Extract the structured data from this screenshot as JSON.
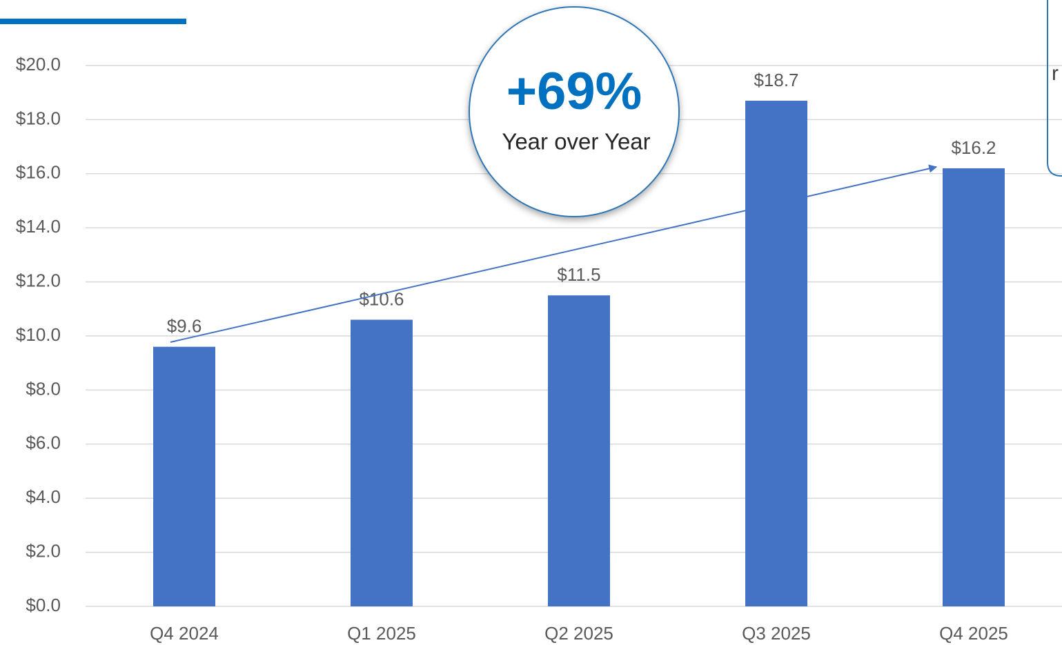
{
  "chart_data": {
    "type": "bar",
    "categories": [
      "Q4 2024",
      "Q1 2025",
      "Q2 2025",
      "Q3 2025",
      "Q4 2025"
    ],
    "values": [
      9.6,
      10.6,
      11.5,
      18.7,
      16.2
    ],
    "value_labels": [
      "$9.6",
      "$10.6",
      "$11.5",
      "$18.7",
      "$16.2"
    ],
    "color": "#4472c4",
    "ylim": [
      0,
      20
    ],
    "yticks": [
      {
        "value": 0,
        "label": "$0.0"
      },
      {
        "value": 2,
        "label": "$2.0"
      },
      {
        "value": 4,
        "label": "$4.0"
      },
      {
        "value": 6,
        "label": "$6.0"
      },
      {
        "value": 8,
        "label": "$8.0"
      },
      {
        "value": 10,
        "label": "$10.0"
      },
      {
        "value": 12,
        "label": "$12.0"
      },
      {
        "value": 14,
        "label": "$14.0"
      },
      {
        "value": 16,
        "label": "$16.0"
      },
      {
        "value": 18,
        "label": "$18.0"
      },
      {
        "value": 20,
        "label": "$20.0"
      }
    ],
    "grid": true,
    "annotations": {
      "growth": "+69%",
      "growth_caption": "Year over Year",
      "side_note": "r"
    }
  }
}
